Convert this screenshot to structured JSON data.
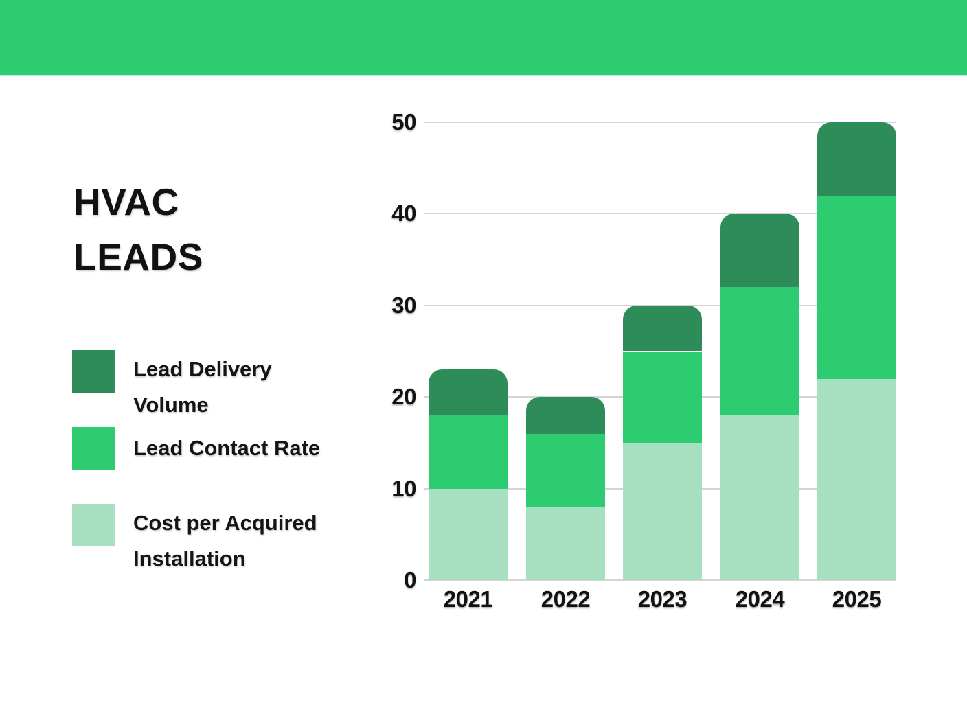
{
  "header": {
    "bg_color": "#2ecc71"
  },
  "title": {
    "text": "HVAC\nLEADS"
  },
  "legend": [
    {
      "label": "Lead Delivery\nVolume",
      "color": "#2e8c58",
      "swatch": "dark-green-swatch"
    },
    {
      "label": "Lead Contact Rate",
      "color": "#2ecc71",
      "swatch": "medium-green-swatch"
    },
    {
      "label": "Cost per Acquired\nInstallation",
      "color": "#a7e0c1",
      "swatch": "light-green-swatch"
    }
  ],
  "chart_data": {
    "type": "bar",
    "stacked": true,
    "title": "HVAC LEADS",
    "categories": [
      "2021",
      "2022",
      "2023",
      "2024",
      "2025"
    ],
    "series": [
      {
        "name": "Cost per Acquired Installation",
        "color": "#a7e0c1",
        "values": [
          10,
          8,
          15,
          18,
          22
        ]
      },
      {
        "name": "Lead Contact Rate",
        "color": "#2ecc71",
        "values": [
          8,
          8,
          10,
          14,
          20
        ]
      },
      {
        "name": "Lead Delivery Volume",
        "color": "#2e8c58",
        "values": [
          5,
          4,
          5,
          8,
          8
        ]
      }
    ],
    "totals": [
      23,
      20,
      30,
      40,
      50
    ],
    "ylim": [
      0,
      50
    ],
    "yticks": [
      0,
      10,
      20,
      30,
      40,
      50
    ],
    "xlabel": "",
    "ylabel": "",
    "grid": true,
    "gridline_color": "#d4d4d4",
    "legend_position": "left"
  }
}
